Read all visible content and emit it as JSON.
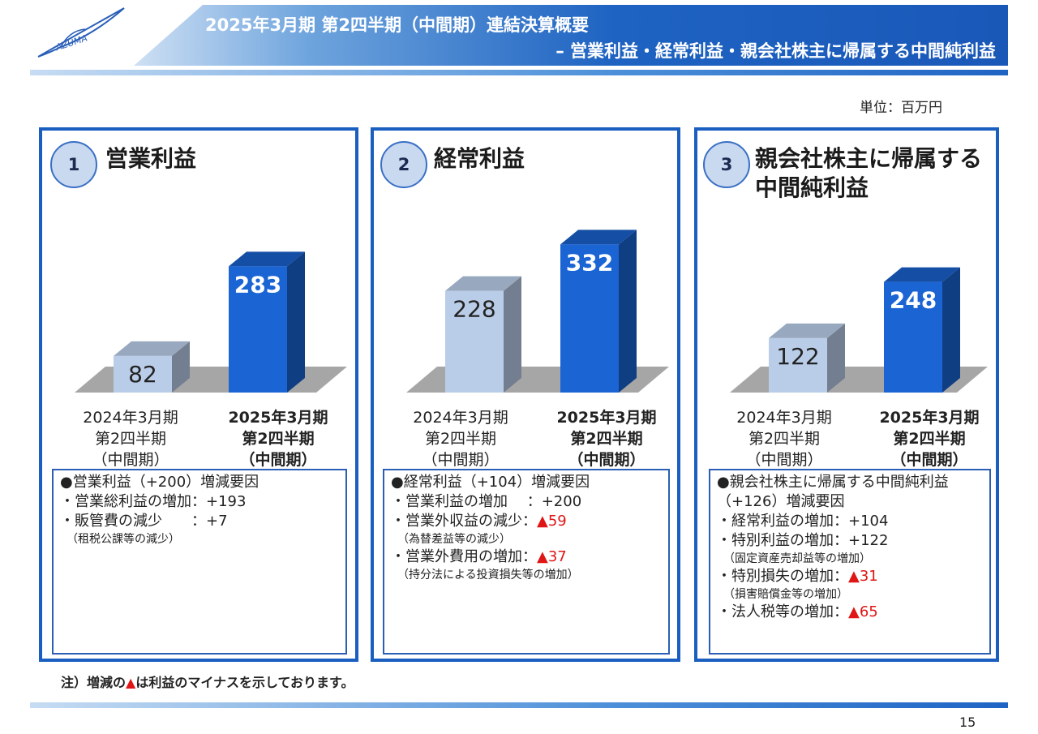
{
  "header": {
    "title_line1": "2025年3月期 第2四半期（中間期）連結決算概要",
    "title_line2": "– 営業利益・経常利益・親会社株主に帰属する中間純利益",
    "logo_text": "AZUMA"
  },
  "unit_label": "単位：百万円",
  "chart_data": [
    {
      "type": "bar",
      "title": "営業利益",
      "categories": [
        "2024年3月期 第2四半期（中間期）",
        "2025年3月期 第2四半期（中間期）"
      ],
      "values": [
        82,
        283
      ]
    },
    {
      "type": "bar",
      "title": "経常利益",
      "categories": [
        "2024年3月期 第2四半期（中間期）",
        "2025年3月期 第2四半期（中間期）"
      ],
      "values": [
        228,
        332
      ]
    },
    {
      "type": "bar",
      "title": "親会社株主に帰属する中間純利益",
      "categories": [
        "2024年3月期 第2四半期（中間期）",
        "2025年3月期 第2四半期（中間期）"
      ],
      "values": [
        122,
        248
      ]
    }
  ],
  "panels": [
    {
      "number": "1",
      "title_line1": "営業利益",
      "title_line2": "",
      "bar_labels": [
        "82",
        "283"
      ],
      "x_labels": [
        {
          "line1": "2024年3月期",
          "line2": "第2四半期",
          "line3": "（中間期）"
        },
        {
          "line1": "2025年3月期",
          "line2": "第2四半期",
          "line3": "（中間期）"
        }
      ],
      "notes": [
        {
          "text": "●営業利益（+200）増減要因",
          "neg": ""
        },
        {
          "text": "・営業総利益の増加：+193",
          "neg": ""
        },
        {
          "text": "・販管費の減少　　：+7",
          "neg": ""
        }
      ],
      "notes_small": [
        "（租税公課等の減少）"
      ]
    },
    {
      "number": "2",
      "title_line1": "経常利益",
      "title_line2": "",
      "bar_labels": [
        "228",
        "332"
      ],
      "x_labels": [
        {
          "line1": "2024年3月期",
          "line2": "第2四半期",
          "line3": "（中間期）"
        },
        {
          "line1": "2025年3月期",
          "line2": "第2四半期",
          "line3": "（中間期）"
        }
      ],
      "notes": [
        {
          "text": "●経常利益（+104）増減要因",
          "neg": ""
        },
        {
          "text": "・営業利益の増加　 ：+200",
          "neg": ""
        },
        {
          "text": "・営業外収益の減少：",
          "neg": "▲59"
        },
        {
          "text": "（為替差益等の減少）",
          "neg": "",
          "small": true
        },
        {
          "text": "・営業外費用の増加：",
          "neg": "▲37"
        },
        {
          "text": "（持分法による投資損失等の増加）",
          "neg": "",
          "small": true
        }
      ]
    },
    {
      "number": "3",
      "title_line1": "親会社株主に帰属する",
      "title_line2": "中間純利益",
      "bar_labels": [
        "122",
        "248"
      ],
      "x_labels": [
        {
          "line1": "2024年3月期",
          "line2": "第2四半期",
          "line3": "（中間期）"
        },
        {
          "line1": "2025年3月期",
          "line2": "第2四半期",
          "line3": "（中間期）"
        }
      ],
      "notes": [
        {
          "text": "●親会社株主に帰属する中間純利益",
          "neg": ""
        },
        {
          "text": "（+126）増減要因",
          "neg": ""
        },
        {
          "text": "・経常利益の増加：+104",
          "neg": ""
        },
        {
          "text": "・特別利益の増加：+122",
          "neg": ""
        },
        {
          "text": "（固定資産売却益等の増加）",
          "neg": "",
          "small": true
        },
        {
          "text": "・特別損失の増加：",
          "neg": "▲31"
        },
        {
          "text": "（損害賠償金等の増加）",
          "neg": "",
          "small": true
        },
        {
          "text": "・法人税等の増加：",
          "neg": "▲65"
        }
      ]
    }
  ],
  "footnote": {
    "prefix": "注）増減の",
    "triangle": "▲",
    "suffix": "は利益のマイナスを示しております。"
  },
  "page_number": "15",
  "colors": {
    "prev_bar": "#b9cde8",
    "curr_bar": "#1a64d4",
    "panel_border": "#1a5fbf",
    "negative": "#e01515"
  }
}
